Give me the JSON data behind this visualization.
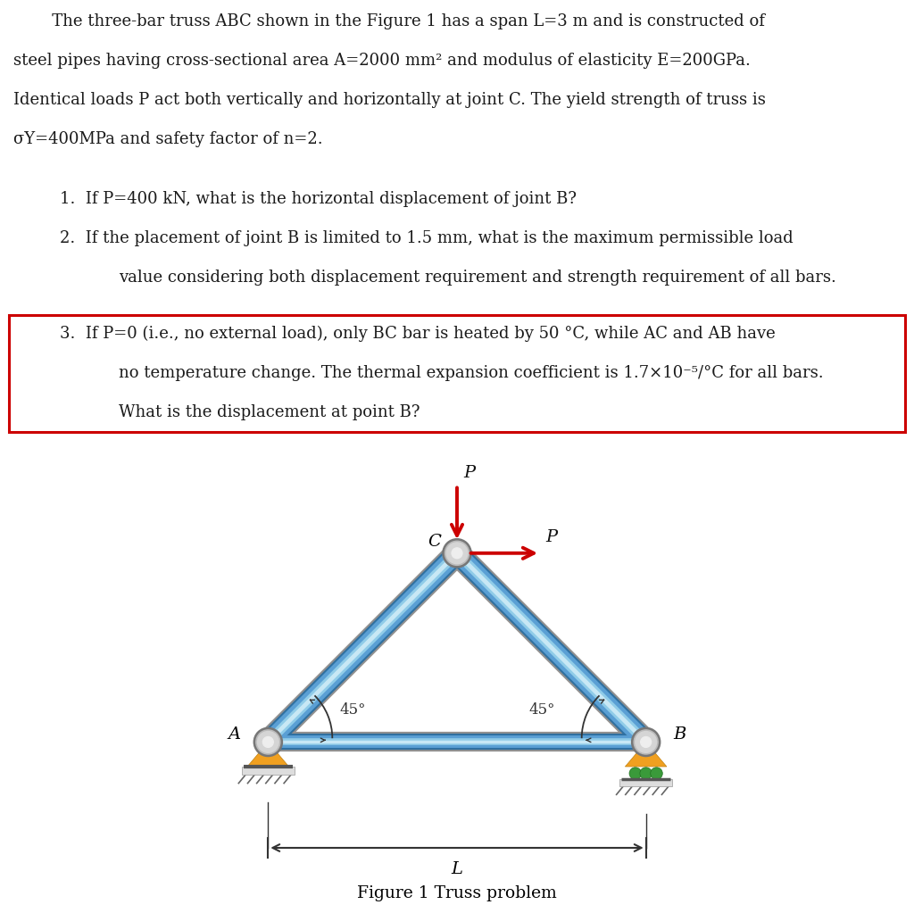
{
  "bg_color": "#ffffff",
  "text_color": "#1a1a1a",
  "font_family": "DejaVu Serif",
  "font_size": 13.0,
  "para_line1": "   The three-bar truss ABC shown in the Figure 1 has a span L=3 m and is constructed of",
  "para_line2": "steel pipes having cross-sectional area A=2000 mm² and modulus of elasticity E=200GPa.",
  "para_line3": "Identical loads P act both vertically and horizontally at joint C. The yield strength of truss is",
  "para_line4": "σY=400MPa and safety factor of n=2.",
  "item1": "If P=400 kN, what is the horizontal displacement of joint B?",
  "item2_line1": "If the placement of joint B is limited to 1.5 mm, what is the maximum permissible load",
  "item2_line2": "value considering both displacement requirement and strength requirement of all bars.",
  "item3_line1": "If P=0 (i.e., no external load), only BC bar is heated by 50 °C, while AC and AB have",
  "item3_line2": "no temperature change. The thermal expansion coefficient is 1.7×10⁻⁵/°C for all bars.",
  "item3_line3": "What is the displacement at point B?",
  "figure_caption": "Figure 1 Truss problem",
  "bar_color_outer": "#5a9fd4",
  "bar_color_mid": "#90cce8",
  "bar_color_light": "#c8e8f5",
  "bar_edge_color": "#3070a0",
  "bar_gray_edge": "#909090",
  "joint_outer": "#aaaaaa",
  "joint_mid": "#cccccc",
  "joint_inner": "#e8e8e8",
  "support_orange": "#f0a020",
  "support_roller_green": "#3a9a3a",
  "support_ground": "#888888",
  "arrow_red": "#cc0000",
  "box_red": "#cc0000",
  "angle_arc_color": "#333333",
  "dim_line_color": "#333333",
  "A": [
    0.0,
    0.0
  ],
  "B": [
    1.0,
    0.0
  ],
  "C": [
    0.5,
    0.5
  ],
  "label_A": "A",
  "label_B": "B",
  "label_C": "C",
  "angle_left": "45°",
  "angle_right": "45°",
  "label_L": "L",
  "label_P_vert": "P",
  "label_P_horiz": "P"
}
